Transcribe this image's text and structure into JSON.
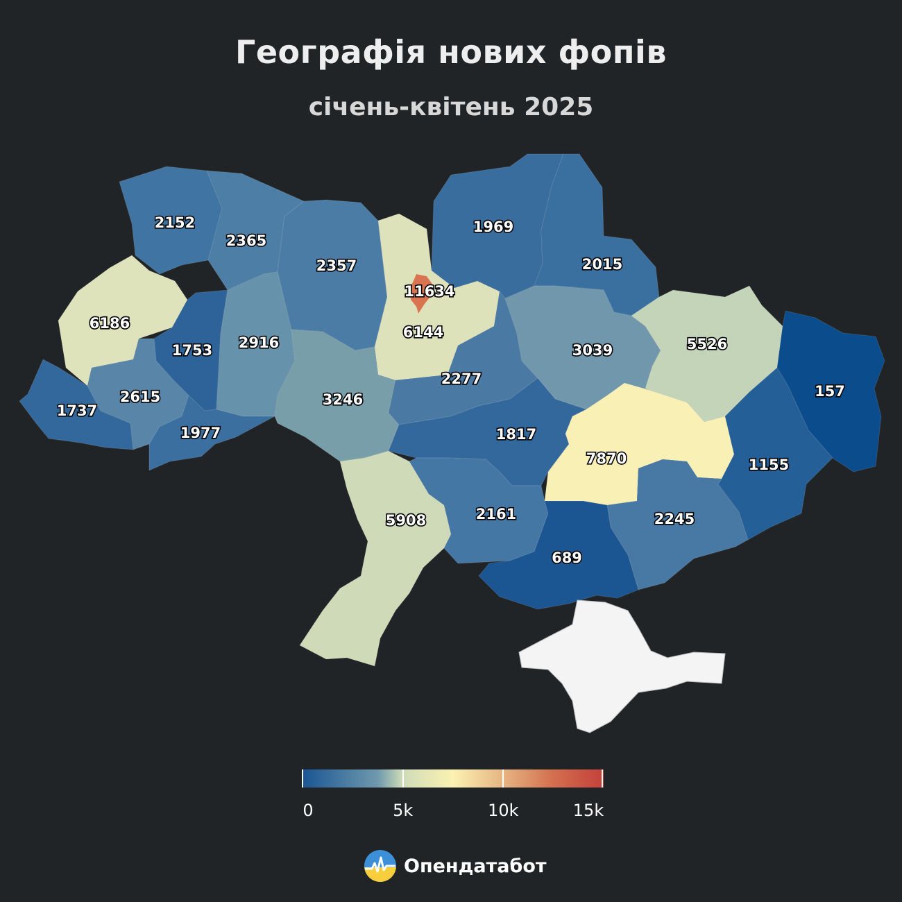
{
  "title": "Географія нових фопів",
  "subtitle": "січень-квітень 2025",
  "map": {
    "value_range": [
      0,
      15000
    ],
    "regions": [
      {
        "id": "volyn",
        "value": 2152,
        "color": "#3f74a3"
      },
      {
        "id": "rivne",
        "value": 2365,
        "color": "#4d7ea6"
      },
      {
        "id": "zhytomyr",
        "value": 2357,
        "color": "#4b7ca5"
      },
      {
        "id": "kyiv-oblast",
        "value": 6144,
        "color": "#dde2bb"
      },
      {
        "id": "kyiv-city",
        "value": 11634,
        "color": "#d8744f"
      },
      {
        "id": "chernihiv",
        "value": 1969,
        "color": "#386d9e"
      },
      {
        "id": "sumy",
        "value": 2015,
        "color": "#3a709f"
      },
      {
        "id": "lviv",
        "value": 6186,
        "color": "#dfe3bb"
      },
      {
        "id": "ternopil",
        "value": 1753,
        "color": "#2e6399"
      },
      {
        "id": "khmelnytskyi",
        "value": 2916,
        "color": "#6792ac"
      },
      {
        "id": "zakarpattia",
        "value": 1737,
        "color": "#33689c"
      },
      {
        "id": "ivano-frankivsk",
        "value": 2615,
        "color": "#5885a8"
      },
      {
        "id": "chernivtsi",
        "value": 1977,
        "color": "#3a6fa0"
      },
      {
        "id": "vinnytsia",
        "value": 3246,
        "color": "#789ea9"
      },
      {
        "id": "cherkasy",
        "value": 2277,
        "color": "#4a7aa4"
      },
      {
        "id": "poltava",
        "value": 3039,
        "color": "#7097ab"
      },
      {
        "id": "kharkiv",
        "value": 5526,
        "color": "#c3d4b8"
      },
      {
        "id": "luhansk",
        "value": 157,
        "color": "#0b4c8c"
      },
      {
        "id": "kirovohrad",
        "value": 1817,
        "color": "#33689c"
      },
      {
        "id": "dnipro",
        "value": 7870,
        "color": "#f8f0b4"
      },
      {
        "id": "donetsk",
        "value": 1155,
        "color": "#245f98"
      },
      {
        "id": "odesa",
        "value": 5908,
        "color": "#cfdab8"
      },
      {
        "id": "mykolaiv",
        "value": 2161,
        "color": "#4577a4"
      },
      {
        "id": "zaporizhzhia",
        "value": 2245,
        "color": "#4879a4"
      },
      {
        "id": "kherson",
        "value": 689,
        "color": "#1b5592"
      }
    ]
  },
  "legend": {
    "ticks": [
      {
        "value": 0,
        "label": "0"
      },
      {
        "value": 5000,
        "label": "5k"
      },
      {
        "value": 10000,
        "label": "10k"
      },
      {
        "value": 15000,
        "label": "15k"
      }
    ]
  },
  "brand": {
    "name": "Опендатабот"
  }
}
